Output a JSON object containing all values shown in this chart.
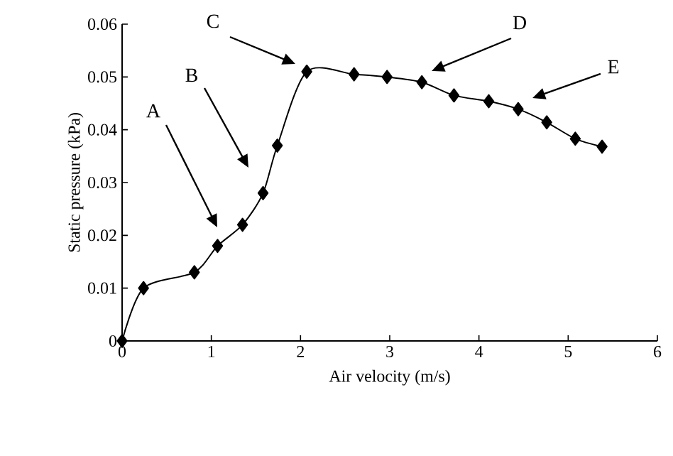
{
  "chart_data": {
    "type": "line",
    "xlabel": "Air velocity (m/s)",
    "ylabel": "Static pressure (kPa)",
    "x": [
      0,
      0.24,
      0.81,
      1.07,
      1.35,
      1.58,
      1.74,
      2.07,
      2.6,
      2.97,
      3.36,
      3.72,
      4.11,
      4.44,
      4.76,
      5.08,
      5.38
    ],
    "series": [
      {
        "color": "#000000",
        "values": [
          0,
          0.01,
          0.013,
          0.018,
          0.022,
          0.028,
          0.037,
          0.051,
          0.0505,
          0.05,
          0.049,
          0.0465,
          0.0454,
          0.0439,
          0.0414,
          0.0383,
          0.0368
        ]
      }
    ],
    "marker": "diamond",
    "line_style": "solid",
    "xlim": [
      0,
      6
    ],
    "ylim": [
      0,
      0.06
    ],
    "xticks": [
      0,
      1,
      2,
      3,
      4,
      5,
      6
    ],
    "yticks": [
      0,
      0.01,
      0.02,
      0.03,
      0.04,
      0.05,
      0.06
    ],
    "annotations": [
      "A",
      "B",
      "C",
      "D",
      "E"
    ]
  }
}
